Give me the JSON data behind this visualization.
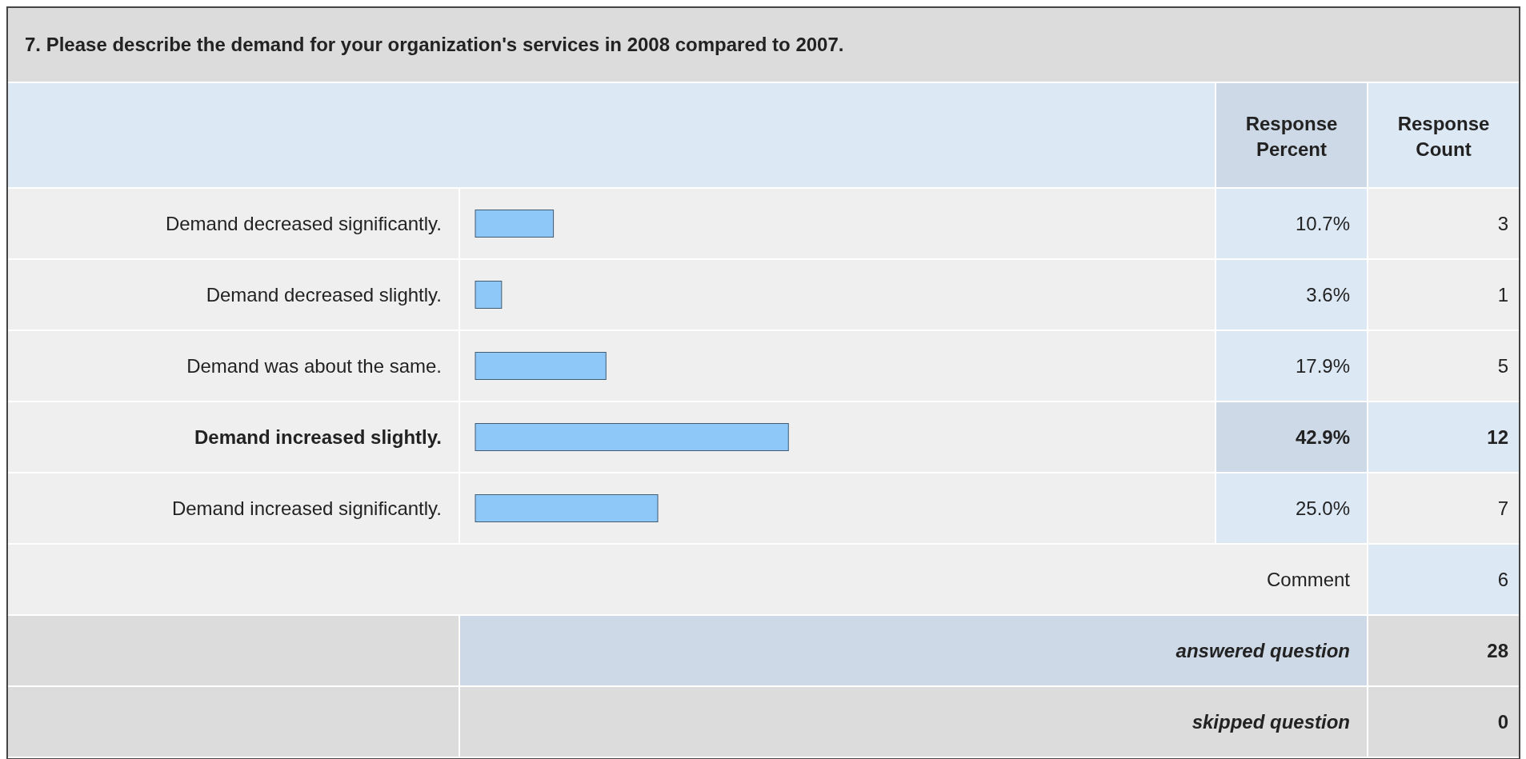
{
  "chart_data": {
    "type": "bar",
    "orientation": "horizontal",
    "title": "7. Please describe the demand for your organization's services in 2008 compared to 2007.",
    "categories": [
      "Demand decreased significantly.",
      "Demand decreased slightly.",
      "Demand was about the same.",
      "Demand increased slightly.",
      "Demand increased significantly."
    ],
    "values": [
      10.7,
      3.6,
      17.9,
      42.9,
      25.0
    ],
    "value_labels": [
      "10.7%",
      "3.6%",
      "17.9%",
      "42.9%",
      "25.0%"
    ],
    "color": "#8ec8f8",
    "annotations": [
      "Response Percent",
      "Response Count",
      "3",
      "1",
      "5",
      "12",
      "7",
      "Comment",
      "6",
      "answered question",
      "28",
      "skipped question",
      "0"
    ]
  }
}
